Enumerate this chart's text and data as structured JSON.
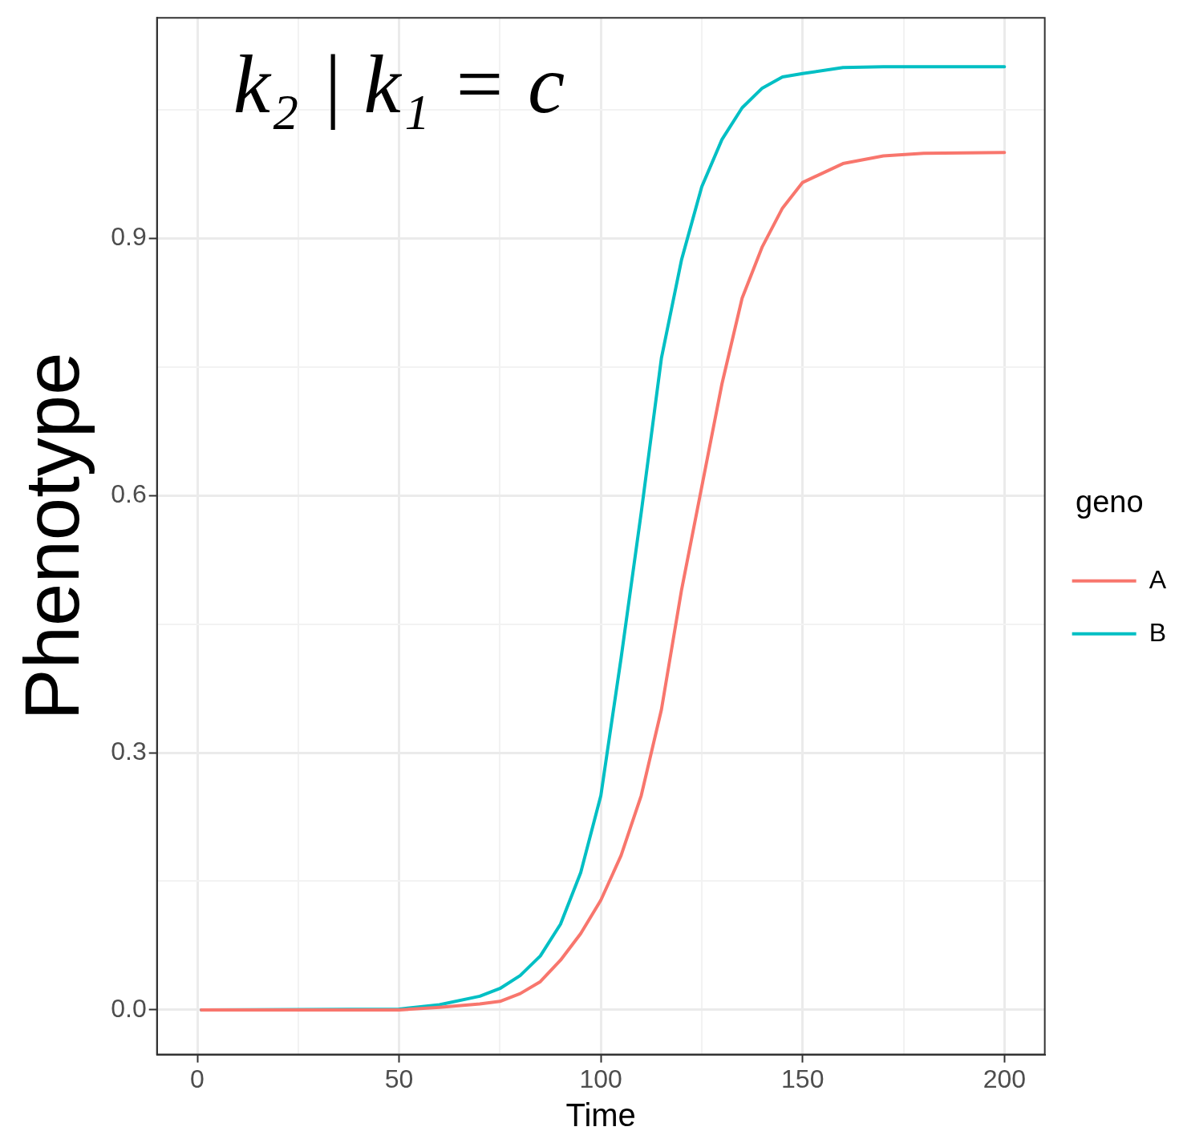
{
  "chart_data": {
    "type": "line",
    "xlabel": "Time",
    "ylabel": "Phenotype",
    "legend_title": "geno",
    "annotations": [
      "k₂ | k₁ = c"
    ],
    "x": [
      1,
      50,
      60,
      70,
      75,
      80,
      85,
      90,
      95,
      100,
      105,
      110,
      115,
      120,
      125,
      130,
      135,
      140,
      145,
      150,
      160,
      170,
      180,
      200
    ],
    "series": [
      {
        "name": "A",
        "color": "#f8766d",
        "values": [
          0,
          0.0,
          0.003,
          0.007,
          0.01,
          0.019,
          0.033,
          0.058,
          0.089,
          0.128,
          0.18,
          0.25,
          0.35,
          0.49,
          0.61,
          0.73,
          0.83,
          0.89,
          0.935,
          0.965,
          0.987,
          0.996,
          0.999,
          1.0
        ]
      },
      {
        "name": "B",
        "color": "#00bfc4",
        "values": [
          0,
          0.001,
          0.006,
          0.016,
          0.025,
          0.04,
          0.063,
          0.1,
          0.16,
          0.25,
          0.41,
          0.58,
          0.76,
          0.875,
          0.96,
          1.015,
          1.052,
          1.075,
          1.088,
          1.092,
          1.099,
          1.1,
          1.1,
          1.1
        ]
      }
    ],
    "xlim": [
      -10,
      210
    ],
    "ylim": [
      -0.052,
      1.157
    ],
    "xticks": [
      0,
      {
        "value": 25,
        "label": null
      },
      50,
      {
        "value": 75,
        "label": null
      },
      100,
      {
        "value": 125,
        "label": null
      },
      150,
      {
        "value": 175,
        "label": null
      },
      200
    ],
    "yticks": [
      {
        "value": 0,
        "label": "0.0"
      },
      {
        "value": 0.15,
        "label": null
      },
      0.3,
      {
        "value": 0.45,
        "label": null
      },
      0.6,
      {
        "value": 0.75,
        "label": null
      },
      0.9,
      {
        "value": 1.05,
        "label": null
      }
    ],
    "grid": true,
    "legend": "right",
    "marker": "none",
    "line_style": "solid"
  }
}
